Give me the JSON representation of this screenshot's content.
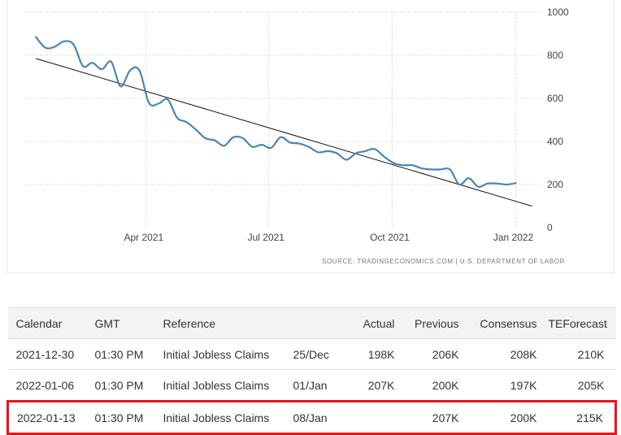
{
  "chart_data": {
    "type": "line",
    "source_text": "SOURCE: TRADINGECONOMICS.COM  |  U.S. DEPARTMENT OF LABOR",
    "y_ticks": [
      "1000",
      "800",
      "600",
      "400",
      "200",
      "0"
    ],
    "ylim": [
      0,
      1000
    ],
    "x_ticks": [
      "Apr 2021",
      "Jul 2021",
      "Oct 2021",
      "Jan 2022"
    ],
    "grid": true,
    "series": [
      {
        "color": "#4a86b5",
        "x": [
          "2021-01-09",
          "2021-01-16",
          "2021-01-23",
          "2021-01-30",
          "2021-02-06",
          "2021-02-13",
          "2021-02-20",
          "2021-02-27",
          "2021-03-06",
          "2021-03-13",
          "2021-03-20",
          "2021-03-27",
          "2021-04-03",
          "2021-04-10",
          "2021-04-17",
          "2021-04-24",
          "2021-05-01",
          "2021-05-08",
          "2021-05-15",
          "2021-05-22",
          "2021-05-29",
          "2021-06-05",
          "2021-06-12",
          "2021-06-19",
          "2021-06-26",
          "2021-07-03",
          "2021-07-10",
          "2021-07-17",
          "2021-07-24",
          "2021-07-31",
          "2021-08-07",
          "2021-08-14",
          "2021-08-21",
          "2021-08-28",
          "2021-09-04",
          "2021-09-11",
          "2021-09-18",
          "2021-09-25",
          "2021-10-02",
          "2021-10-09",
          "2021-10-16",
          "2021-10-23",
          "2021-10-30",
          "2021-11-06",
          "2021-11-13",
          "2021-11-20",
          "2021-11-27",
          "2021-12-04",
          "2021-12-11",
          "2021-12-18",
          "2021-12-25",
          "2022-01-01"
        ],
        "y": [
          885,
          835,
          840,
          865,
          850,
          750,
          765,
          735,
          770,
          655,
          730,
          730,
          580,
          575,
          595,
          510,
          490,
          455,
          415,
          405,
          380,
          420,
          415,
          375,
          385,
          370,
          420,
          395,
          390,
          375,
          350,
          355,
          345,
          315,
          345,
          355,
          365,
          330,
          300,
          290,
          290,
          275,
          270,
          270,
          270,
          200,
          230,
          190,
          205,
          205,
          200,
          207
        ]
      }
    ],
    "trendline": {
      "color": "#111111",
      "x": [
        "2021-01-09",
        "2022-01-13"
      ],
      "y": [
        785,
        100
      ]
    }
  },
  "table": {
    "headers": [
      "Calendar",
      "GMT",
      "Reference",
      "",
      "Actual",
      "Previous",
      "Consensus",
      "TEForecast"
    ],
    "rows": [
      {
        "date": "2021-12-30",
        "gmt": "01:30 PM",
        "reference": "Initial Jobless Claims",
        "period": "25/Dec",
        "actual": "198K",
        "previous": "206K",
        "consensus": "208K",
        "forecast": "210K"
      },
      {
        "date": "2022-01-06",
        "gmt": "01:30 PM",
        "reference": "Initial Jobless Claims",
        "period": "01/Jan",
        "actual": "207K",
        "previous": "200K",
        "consensus": "197K",
        "forecast": "205K"
      },
      {
        "date": "2022-01-13",
        "gmt": "01:30 PM",
        "reference": "Initial Jobless Claims",
        "period": "08/Jan",
        "actual": "",
        "previous": "207K",
        "consensus": "200K",
        "forecast": "215K",
        "highlighted": true
      }
    ],
    "highlight_color": "#e8141e"
  }
}
